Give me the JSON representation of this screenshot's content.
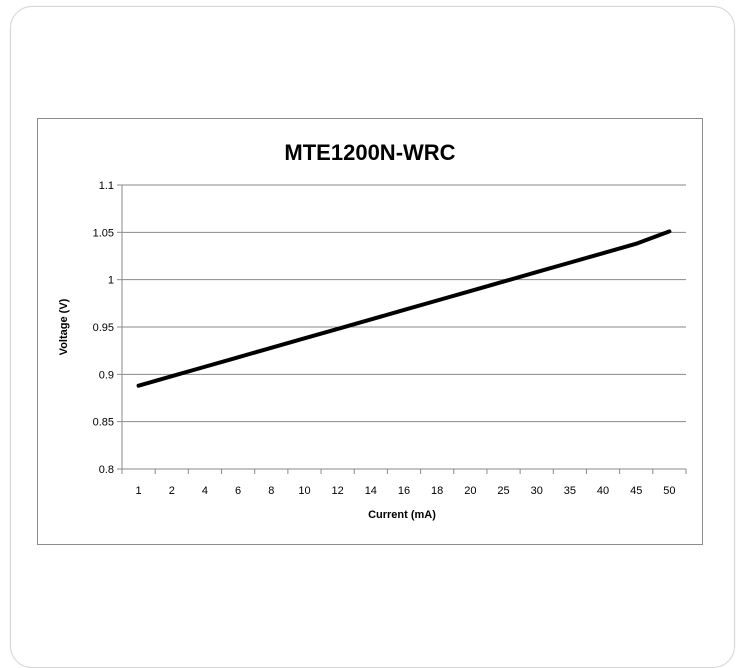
{
  "chart_data": {
    "type": "line",
    "title": "MTE1200N-WRC",
    "xlabel": "Current (mA)",
    "ylabel": "Voltage (V)",
    "categories": [
      "1",
      "2",
      "4",
      "6",
      "8",
      "10",
      "12",
      "14",
      "16",
      "18",
      "20",
      "25",
      "30",
      "35",
      "40",
      "45",
      "50"
    ],
    "series": [
      {
        "values": [
          0.888,
          0.898,
          0.908,
          0.918,
          0.928,
          0.938,
          0.948,
          0.958,
          0.968,
          0.978,
          0.988,
          0.998,
          1.008,
          1.018,
          1.028,
          1.038,
          1.051
        ],
        "color": "#000000"
      }
    ],
    "ylim": [
      0.8,
      1.1
    ],
    "yticks": [
      "0.8",
      "0.85",
      "0.9",
      "0.95",
      "1",
      "1.05",
      "1.1"
    ],
    "grid": "horizontal"
  }
}
